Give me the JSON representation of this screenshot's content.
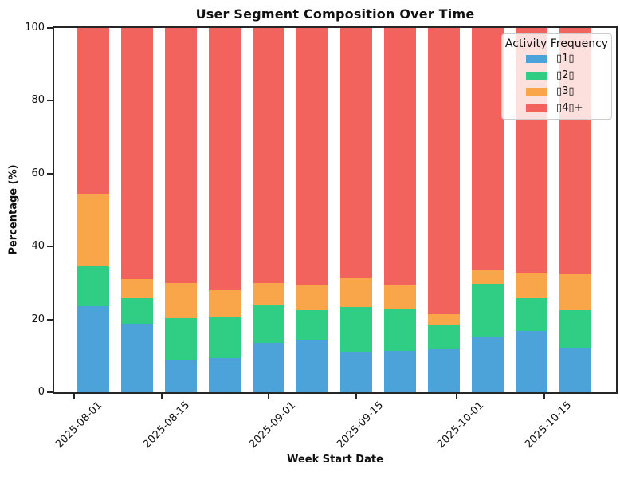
{
  "chart_data": {
    "type": "bar",
    "stacked": true,
    "title": "User Segment Composition Over Time",
    "xlabel": "Week Start Date",
    "ylabel": "Percentage (%)",
    "ylim": [
      0,
      100
    ],
    "yticks": [
      0,
      20,
      40,
      60,
      80,
      100
    ],
    "xticks": [
      "2025-08-01",
      "2025-08-15",
      "2025-09-01",
      "2025-09-15",
      "2025-10-01",
      "2025-10-15"
    ],
    "categories": [
      "2025-08-04",
      "2025-08-11",
      "2025-08-18",
      "2025-08-25",
      "2025-09-01",
      "2025-09-08",
      "2025-09-15",
      "2025-09-22",
      "2025-09-29",
      "2025-10-06",
      "2025-10-13",
      "2025-10-20"
    ],
    "series": [
      {
        "name": "▯1▯",
        "color": "#4ba3d9",
        "values": [
          23.6,
          18.8,
          8.9,
          9.4,
          13.6,
          14.5,
          11.0,
          11.4,
          11.8,
          15.2,
          16.9,
          12.3
        ]
      },
      {
        "name": "▯2▯",
        "color": "#30ce84",
        "values": [
          10.9,
          7.1,
          11.5,
          11.3,
          10.3,
          8.0,
          12.4,
          11.3,
          6.7,
          14.6,
          8.9,
          10.3
        ]
      },
      {
        "name": "▯3▯",
        "color": "#f9a64a",
        "values": [
          20.0,
          5.2,
          9.6,
          7.3,
          6.1,
          6.8,
          7.8,
          6.9,
          3.0,
          3.8,
          6.8,
          9.8
        ]
      },
      {
        "name": "▯4▯+",
        "color": "#f1635c",
        "values": [
          45.5,
          68.9,
          70.0,
          72.0,
          70.0,
          70.7,
          68.8,
          70.4,
          78.5,
          66.4,
          67.4,
          67.6
        ]
      }
    ],
    "legend": {
      "title": "Activity Frequency",
      "position": "upper right"
    },
    "grid": false,
    "axis_color": "#262626",
    "xlim_ref": "2025-08-01",
    "xlim_days": [
      -3.2,
      86.5
    ],
    "bar_width_days": 5.1
  }
}
